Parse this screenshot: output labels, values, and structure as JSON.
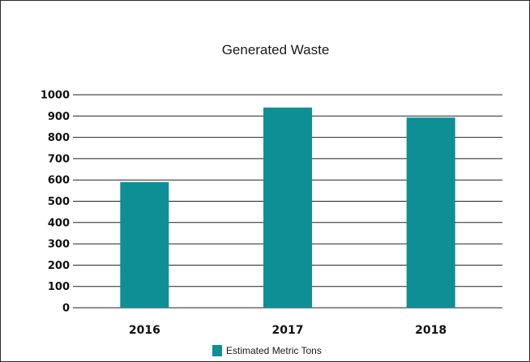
{
  "chart_data": {
    "type": "bar",
    "title": "Generated Waste",
    "categories": [
      "2016",
      "2017",
      "2018"
    ],
    "series": [
      {
        "name": "Estimated Metric Tons",
        "values": [
          590,
          940,
          893
        ],
        "color": "#0e8f96"
      }
    ],
    "ylim": [
      0,
      1000
    ],
    "yticks": [
      "0",
      "100",
      "200",
      "300",
      "400",
      "500",
      "600",
      "700",
      "800",
      "900",
      "1000"
    ],
    "grid": true,
    "legend_position": "bottom"
  }
}
